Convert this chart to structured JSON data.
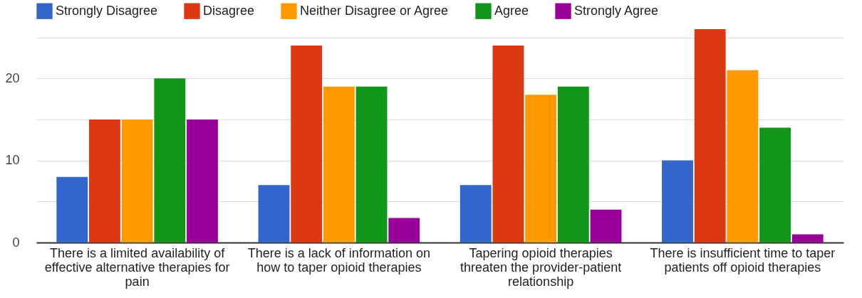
{
  "chart_data": {
    "type": "bar",
    "categories": [
      "There is a limited availability of effective alternative therapies for pain",
      "There is a lack of information on how to taper opioid therapies",
      "Tapering opioid therapies threaten the provider-patient relationship",
      "There is insufficient time to taper patients off opioid therapies"
    ],
    "series": [
      {
        "name": "Strongly Disagree",
        "color": "#3366cc",
        "values": [
          8,
          7,
          7,
          10
        ]
      },
      {
        "name": "Disagree",
        "color": "#dc3912",
        "values": [
          15,
          24,
          24,
          26
        ]
      },
      {
        "name": "Neither Disagree or Agree",
        "color": "#ff9900",
        "values": [
          15,
          19,
          18,
          21
        ]
      },
      {
        "name": "Agree",
        "color": "#109618",
        "values": [
          20,
          19,
          19,
          14
        ]
      },
      {
        "name": "Strongly Agree",
        "color": "#990099",
        "values": [
          15,
          3,
          4,
          1
        ]
      }
    ],
    "ylim": [
      0,
      26
    ],
    "yticks": [
      0,
      {
        "value": 5,
        "label": null
      },
      10,
      {
        "value": 15,
        "label": null
      },
      20,
      {
        "value": 25,
        "label": null
      }
    ],
    "grid": true,
    "legend": "top"
  }
}
